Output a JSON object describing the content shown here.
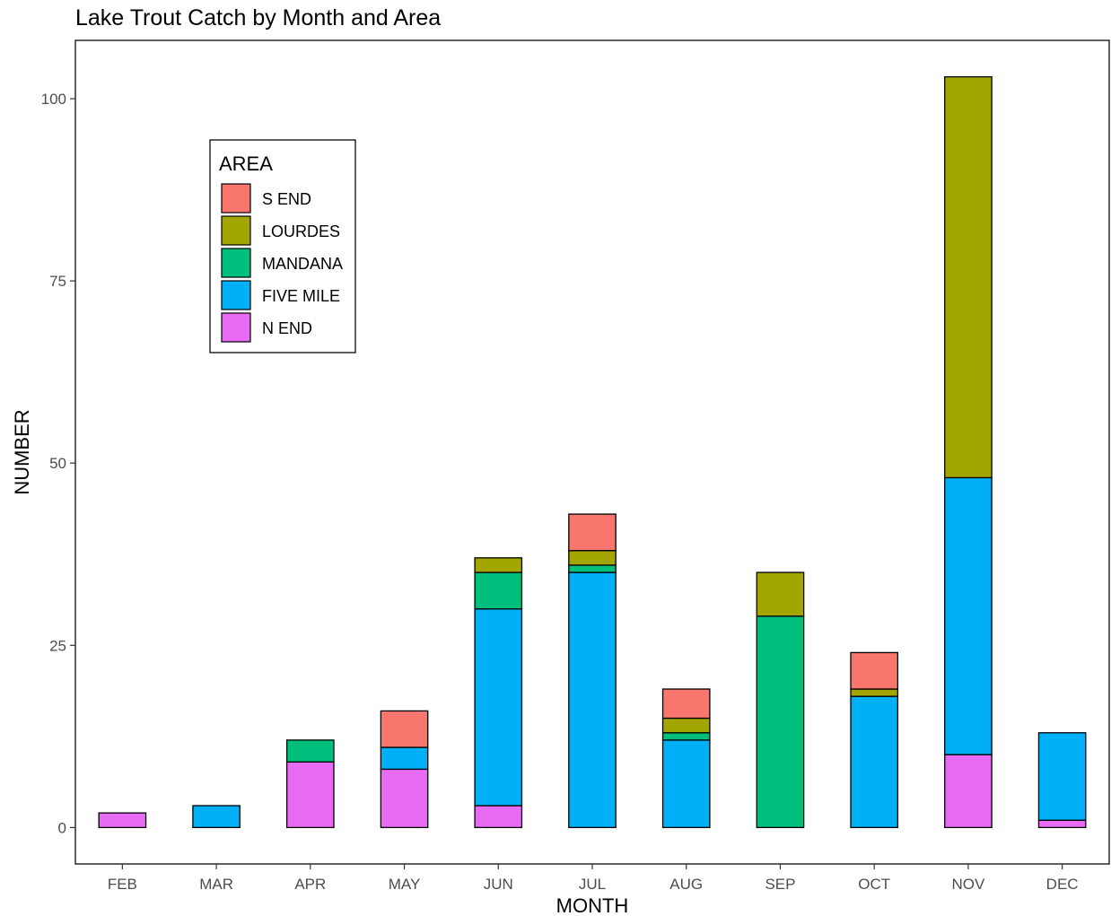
{
  "chart_data": {
    "type": "bar",
    "stacked": true,
    "title": "Lake Trout Catch by Month and Area",
    "xlabel": "MONTH",
    "ylabel": "NUMBER",
    "ylim": [
      -5,
      108
    ],
    "yticks": [
      0,
      25,
      50,
      75,
      100
    ],
    "categories": [
      "FEB",
      "MAR",
      "APR",
      "MAY",
      "JUN",
      "JUL",
      "AUG",
      "SEP",
      "OCT",
      "NOV",
      "DEC"
    ],
    "legend": {
      "title": "AREA",
      "placement": "top-left"
    },
    "grid": false,
    "series": [
      {
        "name": "N END",
        "color": "#E76BF3",
        "values": [
          2,
          0,
          9,
          8,
          3,
          0,
          0,
          0,
          0,
          10,
          1
        ]
      },
      {
        "name": "FIVE MILE",
        "color": "#00B0F6",
        "values": [
          0,
          3,
          0,
          3,
          27,
          35,
          12,
          0,
          18,
          38,
          12
        ]
      },
      {
        "name": "MANDANA",
        "color": "#00BF7D",
        "values": [
          0,
          0,
          3,
          0,
          5,
          1,
          1,
          29,
          0,
          0,
          0
        ]
      },
      {
        "name": "LOURDES",
        "color": "#A3A500",
        "values": [
          0,
          0,
          0,
          0,
          2,
          2,
          2,
          6,
          1,
          55,
          0
        ]
      },
      {
        "name": "S END",
        "color": "#F8766D",
        "values": [
          0,
          0,
          0,
          5,
          0,
          5,
          4,
          0,
          5,
          0,
          0
        ]
      }
    ],
    "legend_order": [
      "S END",
      "LOURDES",
      "MANDANA",
      "FIVE MILE",
      "N END"
    ]
  }
}
